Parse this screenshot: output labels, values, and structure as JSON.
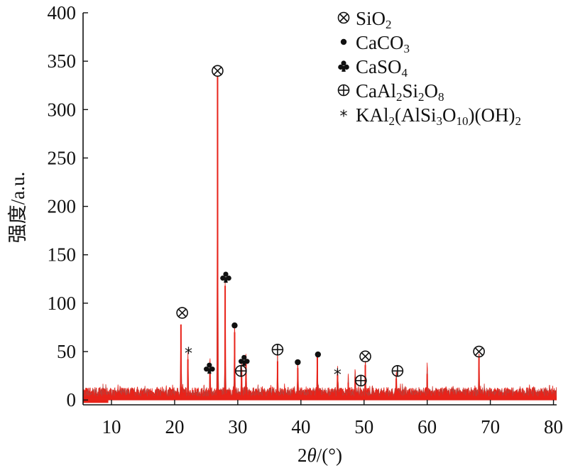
{
  "chart_data": {
    "type": "line",
    "xlabel_parts": [
      "2",
      "θ",
      "/(°)"
    ],
    "ylabel": "强度/a.u.",
    "xlim": [
      5.5,
      80.5
    ],
    "ylim": [
      -5,
      400
    ],
    "x_ticks": [
      10,
      20,
      30,
      40,
      50,
      60,
      70,
      80
    ],
    "y_ticks": [
      0,
      50,
      100,
      150,
      200,
      250,
      300,
      350,
      400
    ],
    "grid": false,
    "background_level": 12,
    "colors": {
      "pattern": "#e8231a",
      "gray_trace": "#707070",
      "text": "#111111"
    },
    "peaks": [
      {
        "x": 21.0,
        "y": 78
      },
      {
        "x": 22.1,
        "y": 42
      },
      {
        "x": 25.6,
        "y": 32
      },
      {
        "x": 26.8,
        "y": 334
      },
      {
        "x": 28.0,
        "y": 118
      },
      {
        "x": 29.5,
        "y": 70
      },
      {
        "x": 30.6,
        "y": 32
      },
      {
        "x": 31.3,
        "y": 38
      },
      {
        "x": 36.3,
        "y": 40
      },
      {
        "x": 39.5,
        "y": 33
      },
      {
        "x": 42.6,
        "y": 45
      },
      {
        "x": 45.8,
        "y": 26
      },
      {
        "x": 47.5,
        "y": 18
      },
      {
        "x": 48.6,
        "y": 24
      },
      {
        "x": 50.2,
        "y": 36
      },
      {
        "x": 55.1,
        "y": 22
      },
      {
        "x": 60.0,
        "y": 27
      },
      {
        "x": 68.2,
        "y": 44
      }
    ],
    "phase_markers": [
      {
        "symbol": "otimes",
        "x": 21.2,
        "y": 90
      },
      {
        "symbol": "otimes",
        "x": 26.8,
        "y": 340
      },
      {
        "symbol": "otimes",
        "x": 50.2,
        "y": 45
      },
      {
        "symbol": "otimes",
        "x": 68.2,
        "y": 50
      },
      {
        "symbol": "bullet",
        "x": 29.5,
        "y": 77
      },
      {
        "symbol": "bullet",
        "x": 39.5,
        "y": 39
      },
      {
        "symbol": "bullet",
        "x": 42.7,
        "y": 47
      },
      {
        "symbol": "club",
        "x": 28.1,
        "y": 127
      },
      {
        "symbol": "club",
        "x": 25.5,
        "y": 33
      },
      {
        "symbol": "club",
        "x": 31.0,
        "y": 41
      },
      {
        "symbol": "oplus",
        "x": 36.3,
        "y": 52
      },
      {
        "symbol": "oplus",
        "x": 30.5,
        "y": 30
      },
      {
        "symbol": "oplus",
        "x": 49.5,
        "y": 20
      },
      {
        "symbol": "oplus",
        "x": 55.3,
        "y": 30
      },
      {
        "symbol": "star",
        "x": 22.2,
        "y": 50
      },
      {
        "symbol": "star",
        "x": 45.8,
        "y": 28
      }
    ],
    "legend": [
      {
        "symbol": "otimes",
        "parts": [
          {
            "t": "SiO"
          },
          {
            "t": "2",
            "sub": true
          }
        ]
      },
      {
        "symbol": "bullet",
        "parts": [
          {
            "t": "CaCO"
          },
          {
            "t": "3",
            "sub": true
          }
        ]
      },
      {
        "symbol": "club",
        "parts": [
          {
            "t": "CaSO"
          },
          {
            "t": "4",
            "sub": true
          }
        ]
      },
      {
        "symbol": "oplus",
        "parts": [
          {
            "t": "CaAl"
          },
          {
            "t": "2",
            "sub": true
          },
          {
            "t": "Si"
          },
          {
            "t": "2",
            "sub": true
          },
          {
            "t": "O"
          },
          {
            "t": "8",
            "sub": true
          }
        ]
      },
      {
        "symbol": "star",
        "parts": [
          {
            "t": "KAl"
          },
          {
            "t": "2",
            "sub": true
          },
          {
            "t": "(AlSi"
          },
          {
            "t": "3",
            "sub": true
          },
          {
            "t": "O"
          },
          {
            "t": "10",
            "sub": true
          },
          {
            "t": ")(OH)"
          },
          {
            "t": "2",
            "sub": true
          }
        ]
      }
    ],
    "legend_placement": "top-right"
  }
}
